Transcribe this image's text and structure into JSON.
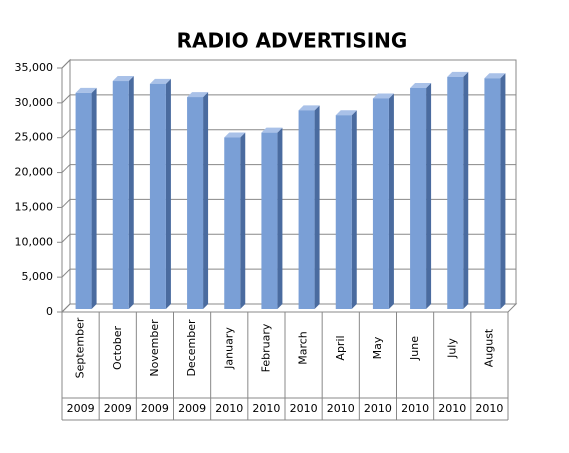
{
  "chart_data": {
    "type": "bar3d",
    "title": "RADIO ADVERTISING",
    "categories": [
      "September",
      "October",
      "November",
      "December",
      "January",
      "February",
      "March",
      "April",
      "May",
      "June",
      "July",
      "August"
    ],
    "years": [
      "2009",
      "2009",
      "2009",
      "2009",
      "2010",
      "2010",
      "2010",
      "2010",
      "2010",
      "2010",
      "2010",
      "2010"
    ],
    "values": [
      31000,
      32700,
      32300,
      30400,
      24600,
      25300,
      28500,
      27800,
      30200,
      31700,
      33300,
      33100
    ],
    "color": "#7a9fd6",
    "ylim": [
      0,
      35000
    ],
    "yticks": [
      0,
      {
        "value": 5000,
        "label": "5,000"
      },
      {
        "value": 10000,
        "label": "10,000"
      },
      {
        "value": 15000,
        "label": "15,000"
      },
      {
        "value": 20000,
        "label": "20,000"
      },
      {
        "value": 25000,
        "label": "25,000"
      },
      {
        "value": 30000,
        "label": "30,000"
      },
      {
        "value": 35000,
        "label": "35,000"
      }
    ],
    "grid": true
  }
}
